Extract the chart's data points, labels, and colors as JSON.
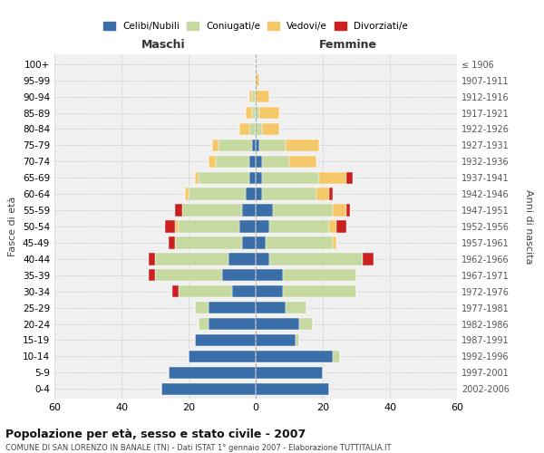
{
  "age_groups": [
    "0-4",
    "5-9",
    "10-14",
    "15-19",
    "20-24",
    "25-29",
    "30-34",
    "35-39",
    "40-44",
    "45-49",
    "50-54",
    "55-59",
    "60-64",
    "65-69",
    "70-74",
    "75-79",
    "80-84",
    "85-89",
    "90-94",
    "95-99",
    "100+"
  ],
  "birth_years": [
    "2002-2006",
    "1997-2001",
    "1992-1996",
    "1987-1991",
    "1982-1986",
    "1977-1981",
    "1972-1976",
    "1967-1971",
    "1962-1966",
    "1957-1961",
    "1952-1956",
    "1947-1951",
    "1942-1946",
    "1937-1941",
    "1932-1936",
    "1927-1931",
    "1922-1926",
    "1917-1921",
    "1912-1916",
    "1907-1911",
    "≤ 1906"
  ],
  "colors": {
    "celibe": "#3a6ea8",
    "coniugato": "#c5d9a0",
    "vedovo": "#f5c96a",
    "divorziato": "#cc2020"
  },
  "male": {
    "celibe": [
      28,
      26,
      20,
      18,
      14,
      14,
      7,
      10,
      8,
      4,
      5,
      4,
      3,
      2,
      2,
      1,
      0,
      0,
      0,
      0,
      0
    ],
    "coniugato": [
      0,
      0,
      0,
      0,
      3,
      4,
      16,
      20,
      22,
      20,
      18,
      18,
      17,
      15,
      10,
      10,
      2,
      1,
      1,
      0,
      0
    ],
    "vedovo": [
      0,
      0,
      0,
      0,
      0,
      0,
      0,
      0,
      0,
      0,
      1,
      0,
      1,
      1,
      2,
      2,
      3,
      2,
      1,
      0,
      0
    ],
    "divorziato": [
      0,
      0,
      0,
      0,
      0,
      0,
      2,
      2,
      2,
      2,
      3,
      2,
      0,
      0,
      0,
      0,
      0,
      0,
      0,
      0,
      0
    ]
  },
  "female": {
    "nubile": [
      22,
      20,
      23,
      12,
      13,
      9,
      8,
      8,
      4,
      3,
      4,
      5,
      2,
      2,
      2,
      1,
      0,
      0,
      0,
      0,
      0
    ],
    "coniugata": [
      0,
      0,
      2,
      1,
      4,
      6,
      22,
      22,
      28,
      20,
      18,
      18,
      16,
      17,
      8,
      8,
      2,
      1,
      0,
      0,
      0
    ],
    "vedova": [
      0,
      0,
      0,
      0,
      0,
      0,
      0,
      0,
      0,
      1,
      2,
      4,
      4,
      8,
      8,
      10,
      5,
      6,
      4,
      1,
      0
    ],
    "divorziata": [
      0,
      0,
      0,
      0,
      0,
      0,
      0,
      0,
      3,
      0,
      3,
      1,
      1,
      2,
      0,
      0,
      0,
      0,
      0,
      0,
      0
    ]
  },
  "xlim": 60,
  "title": "Popolazione per età, sesso e stato civile - 2007",
  "subtitle": "COMUNE DI SAN LORENZO IN BANALE (TN) - Dati ISTAT 1° gennaio 2007 - Elaborazione TUTTITALIA.IT",
  "xlabel_left": "Maschi",
  "xlabel_right": "Femmine",
  "ylabel_left": "Fasce di età",
  "ylabel_right": "Anni di nascita",
  "legend_labels": [
    "Celibi/Nubili",
    "Coniugati/e",
    "Vedovi/e",
    "Divorziati/e"
  ],
  "bg_color": "#ffffff",
  "plot_bg": "#f0f0f0",
  "grid_color": "#cccccc",
  "bar_height": 0.75
}
